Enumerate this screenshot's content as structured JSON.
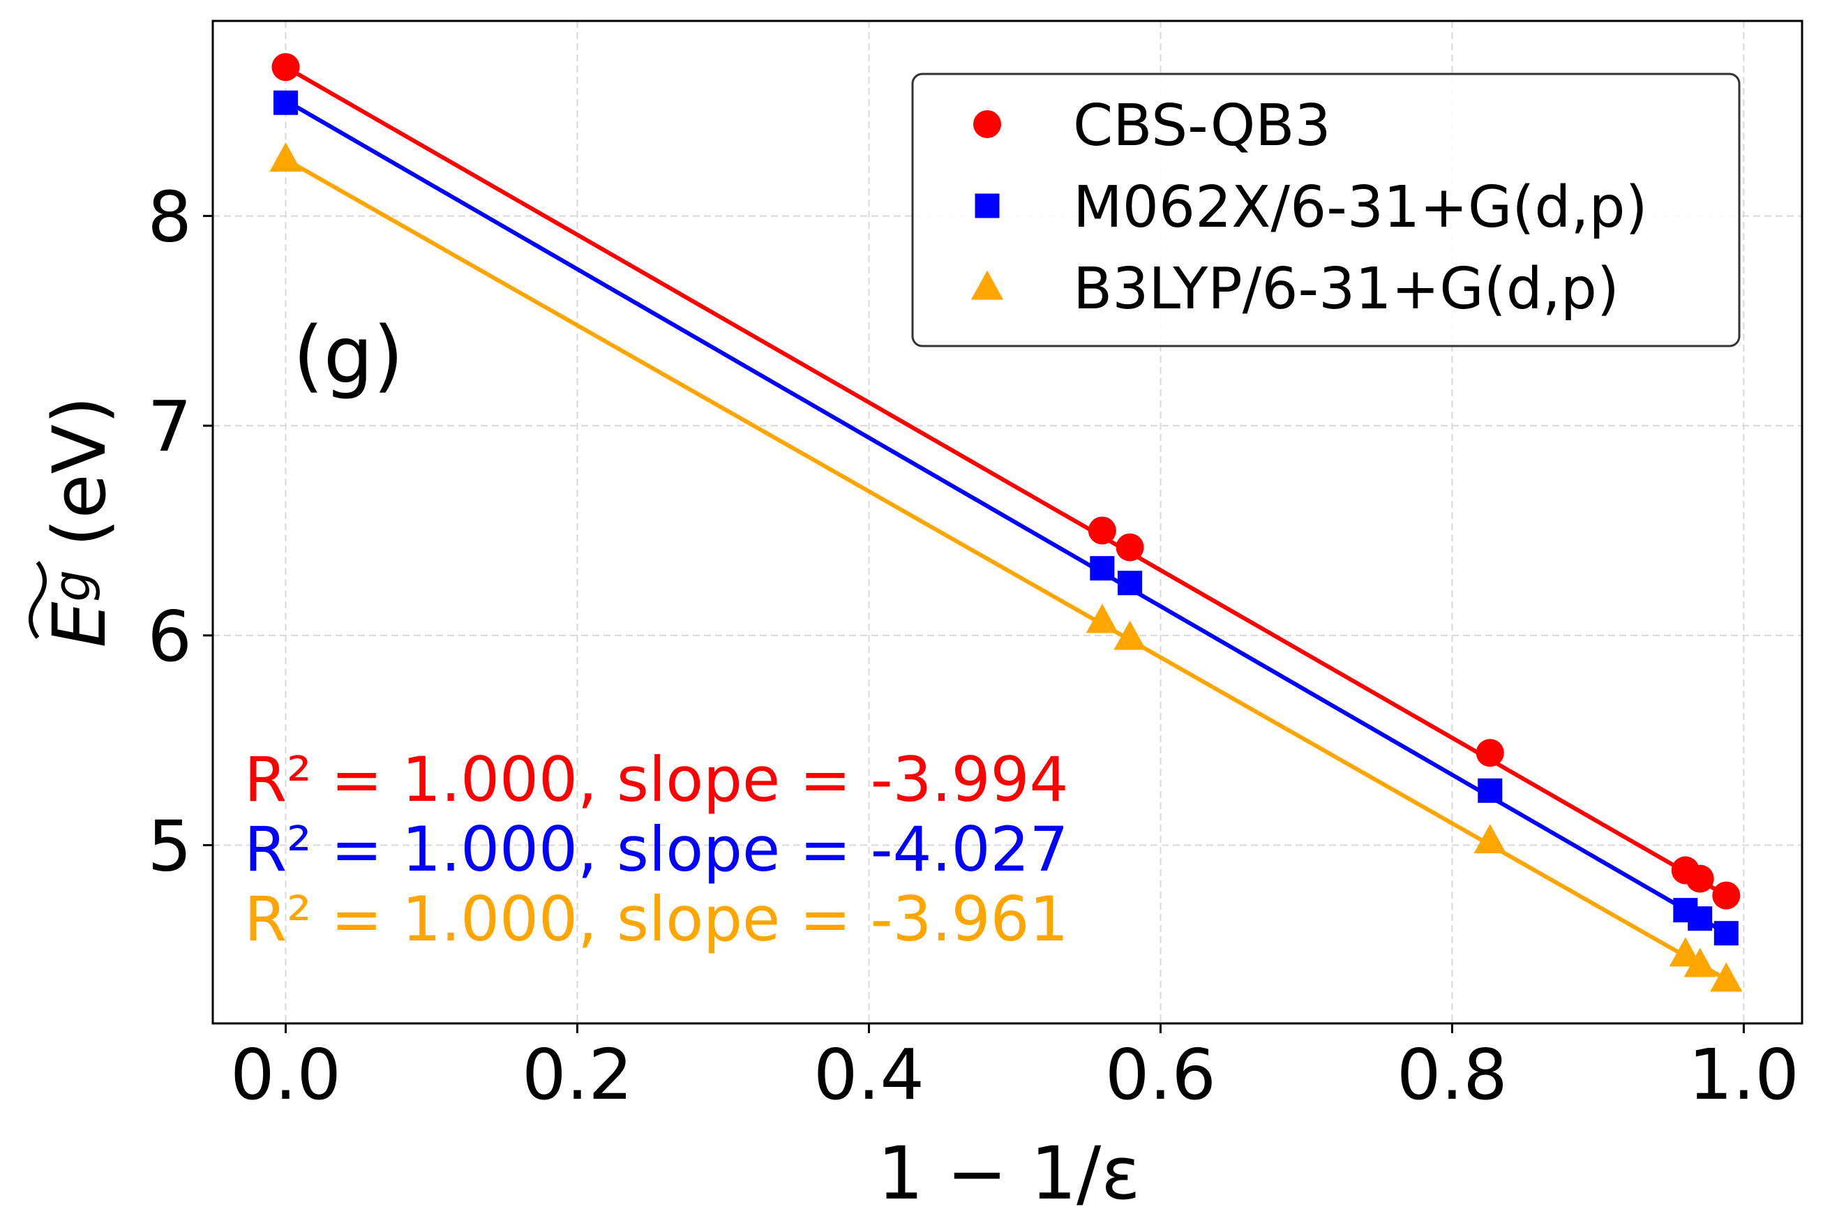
{
  "chart_data": {
    "type": "scatter",
    "panel_label": "(g)",
    "xlabel": "1 − 1/ε",
    "ylabel": {
      "symbol": "E",
      "subscript": "g",
      "unit": " (eV)"
    },
    "xlim": [
      -0.05,
      1.04
    ],
    "ylim": [
      4.15,
      8.93
    ],
    "xticks": [
      0.0,
      0.2,
      0.4,
      0.6,
      0.8,
      1.0
    ],
    "xtick_labels": [
      "0.0",
      "0.2",
      "0.4",
      "0.6",
      "0.8",
      "1.0"
    ],
    "yticks": [
      5,
      6,
      7,
      8
    ],
    "ytick_labels": [
      "5",
      "6",
      "7",
      "8"
    ],
    "grid": true,
    "legend_position": "top-right",
    "series": [
      {
        "name": "CBS-QB3",
        "color": "#ff0000",
        "marker": "circle",
        "x": [
          0.0,
          0.56,
          0.579,
          0.826,
          0.96,
          0.97,
          0.988
        ],
        "y": [
          8.71,
          6.5,
          6.42,
          5.44,
          4.88,
          4.84,
          4.76
        ],
        "fit": {
          "x": [
            0.0,
            0.988
          ],
          "y": [
            8.71,
            4.76
          ]
        },
        "stats": "R² = 1.000, slope = -3.994"
      },
      {
        "name": "M062X/6-31+G(d,p)",
        "color": "#0000ff",
        "marker": "square",
        "x": [
          0.0,
          0.56,
          0.579,
          0.826,
          0.96,
          0.97,
          0.988
        ],
        "y": [
          8.54,
          6.32,
          6.25,
          5.26,
          4.69,
          4.65,
          4.58
        ],
        "fit": {
          "x": [
            0.0,
            0.988
          ],
          "y": [
            8.55,
            4.58
          ]
        },
        "stats": "R² = 1.000, slope = -4.027"
      },
      {
        "name": "B3LYP/6-31+G(d,p)",
        "color": "#ffa500",
        "marker": "triangle",
        "x": [
          0.0,
          0.56,
          0.579,
          0.826,
          0.96,
          0.97,
          0.988
        ],
        "y": [
          8.27,
          6.07,
          5.99,
          5.02,
          4.48,
          4.43,
          4.36
        ],
        "fit": {
          "x": [
            0.0,
            0.988
          ],
          "y": [
            8.27,
            4.36
          ]
        },
        "stats": "R² = 1.000, slope = -3.961"
      }
    ]
  }
}
